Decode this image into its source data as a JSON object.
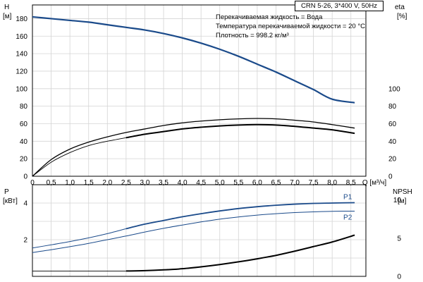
{
  "header": {
    "pump_label": "CRN 5-26, 3*400 V, 50Hz",
    "info_lines": [
      "Перекачиваемая жидкость = Вода",
      "Температура перекачиваемой жидкости = 20 °C",
      "Плотность = 998.2 кг/м³"
    ]
  },
  "chart_data": [
    {
      "type": "line",
      "title": "",
      "xlabel": "Q [м³/ч]",
      "x_ticks": [
        "0",
        "0,5",
        "1,0",
        "1,5",
        "2,0",
        "2,5",
        "3,0",
        "3,5",
        "4,0",
        "4,5",
        "5,0",
        "5,5",
        "6,0",
        "6,5",
        "7,0",
        "7,5",
        "8,0",
        "8,5"
      ],
      "xlim": [
        0,
        8.9
      ],
      "y_left": {
        "label_top": "H",
        "label_unit": "[м]",
        "range": [
          0,
          190
        ],
        "ticks": [
          "0",
          "20",
          "40",
          "60",
          "80",
          "100",
          "120",
          "140",
          "160",
          "180"
        ]
      },
      "y_right": {
        "label_top": "eta",
        "label_unit": "[%]",
        "range": [
          0,
          190
        ],
        "ticks": [
          "0",
          "20",
          "40",
          "60",
          "80",
          "100"
        ]
      },
      "grid": true,
      "series": [
        {
          "name": "H",
          "axis": "left",
          "color": "#1a4a8a",
          "width": 2.2,
          "x": [
            0,
            0.5,
            1.0,
            1.5,
            2.0,
            2.5,
            3.0,
            3.5,
            4.0,
            4.5,
            5.0,
            5.5,
            6.0,
            6.5,
            7.0,
            7.5,
            8.0,
            8.6
          ],
          "y": [
            182,
            180,
            178,
            176,
            173,
            170,
            167,
            163,
            158,
            152,
            145,
            137,
            128,
            119,
            109,
            99,
            88,
            84
          ]
        },
        {
          "name": "eta",
          "axis": "right",
          "color": "#000000",
          "width": 1.3,
          "x": [
            0,
            0.5,
            1.0,
            1.5,
            2.0,
            2.5,
            3.0,
            3.5,
            4.0,
            4.5,
            5.0,
            5.5,
            6.0,
            6.5,
            7.0,
            7.5,
            8.0,
            8.6
          ],
          "y": [
            0,
            19,
            31,
            39,
            45,
            50,
            54,
            58,
            61,
            63,
            64.5,
            65.5,
            66,
            65.5,
            64,
            62,
            59,
            55
          ]
        },
        {
          "name": "eta_2",
          "axis": "right",
          "color": "#000000",
          "width": 2.0,
          "x": [
            2.5,
            3.0,
            3.5,
            4.0,
            4.5,
            5.0,
            5.5,
            6.0,
            6.5,
            7.0,
            7.5,
            8.0,
            8.6
          ],
          "y": [
            44,
            48,
            51,
            54,
            56,
            57.5,
            58.5,
            59,
            58.5,
            57,
            55,
            53,
            49
          ]
        },
        {
          "name": "eta_3",
          "axis": "right",
          "color": "#000000",
          "width": 0.9,
          "x": [
            0,
            0.5,
            1.0,
            1.5,
            2.0,
            2.5
          ],
          "y": [
            0,
            16,
            27,
            35,
            40,
            44
          ]
        }
      ]
    },
    {
      "type": "line",
      "title": "",
      "y_left": {
        "label_top": "P",
        "label_unit": "[кВт]",
        "range": [
          0,
          5
        ],
        "ticks": [
          "2",
          "4"
        ]
      },
      "y_right": {
        "label_top": "NPSH",
        "label_unit": "[м]",
        "range": [
          0,
          12
        ],
        "ticks": [
          "0",
          "5",
          "10"
        ]
      },
      "xlim": [
        0,
        8.9
      ],
      "grid": true,
      "series": [
        {
          "name": "P1",
          "axis": "left",
          "color": "#1a4a8a",
          "width": 1.8,
          "x": [
            2.5,
            3.0,
            3.5,
            4.0,
            4.5,
            5.0,
            5.5,
            6.0,
            6.5,
            7.0,
            7.5,
            8.0,
            8.6
          ],
          "y": [
            2.6,
            2.85,
            3.05,
            3.25,
            3.42,
            3.57,
            3.7,
            3.8,
            3.88,
            3.94,
            3.98,
            4.0,
            4.02
          ]
        },
        {
          "name": "P1_low",
          "axis": "left",
          "color": "#1a4a8a",
          "width": 1.0,
          "x": [
            0,
            0.5,
            1.0,
            1.5,
            2.0,
            2.5
          ],
          "y": [
            1.55,
            1.72,
            1.9,
            2.1,
            2.33,
            2.6
          ]
        },
        {
          "name": "P2",
          "axis": "left",
          "color": "#1a4a8a",
          "width": 1.0,
          "x": [
            0,
            0.5,
            1.0,
            1.5,
            2.0,
            2.5,
            3.0,
            3.5,
            4.0,
            4.5,
            5.0,
            5.5,
            6.0,
            6.5,
            7.0,
            7.5,
            8.0,
            8.6
          ],
          "y": [
            1.3,
            1.45,
            1.62,
            1.8,
            2.0,
            2.2,
            2.42,
            2.62,
            2.8,
            2.97,
            3.12,
            3.24,
            3.34,
            3.42,
            3.48,
            3.52,
            3.55,
            3.56
          ]
        },
        {
          "name": "NPSH",
          "axis": "right",
          "color": "#000000",
          "width": 2.0,
          "x": [
            2.5,
            3.0,
            3.5,
            4.0,
            4.5,
            5.0,
            5.5,
            6.0,
            6.5,
            7.0,
            7.5,
            8.0,
            8.6
          ],
          "y": [
            0.7,
            0.75,
            0.85,
            1.0,
            1.25,
            1.55,
            1.9,
            2.3,
            2.75,
            3.3,
            3.9,
            4.5,
            5.4
          ]
        },
        {
          "name": "NPSH_low",
          "axis": "right",
          "color": "#000000",
          "width": 0.9,
          "x": [
            0,
            2.5
          ],
          "y": [
            0.7,
            0.7
          ]
        }
      ],
      "series_labels": [
        {
          "text": "P1",
          "series": "P1"
        },
        {
          "text": "P2",
          "series": "P2"
        }
      ]
    }
  ]
}
